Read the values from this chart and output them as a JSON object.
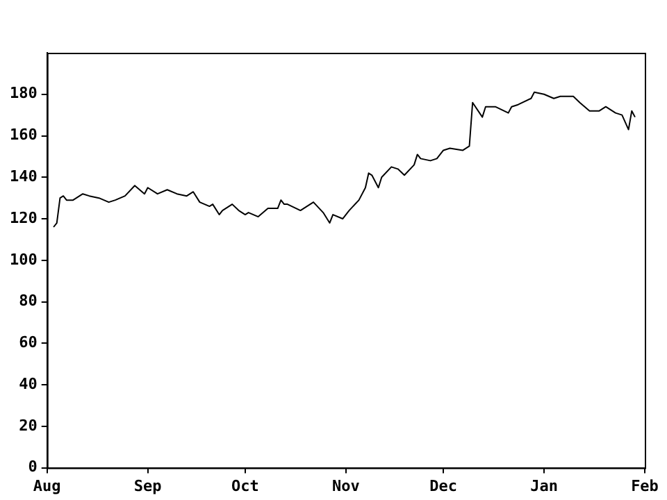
{
  "chart_data": {
    "type": "line",
    "categories": [
      "Aug",
      null,
      null,
      null,
      null,
      null,
      null,
      null,
      null,
      null,
      null,
      null,
      null,
      null,
      null,
      null,
      null,
      null,
      null,
      null,
      null,
      null,
      null,
      null,
      null,
      null,
      null,
      null,
      null,
      null,
      null,
      "Sep",
      null,
      null,
      null,
      null,
      null,
      null,
      null,
      null,
      null,
      null,
      null,
      null,
      null,
      null,
      null,
      null,
      null,
      null,
      null,
      null,
      null,
      null,
      null,
      null,
      null,
      null,
      null,
      null,
      null,
      "Oct",
      null,
      null,
      null,
      null,
      null,
      null,
      null,
      null,
      null,
      null,
      null,
      null,
      null,
      null,
      null,
      null,
      null,
      null,
      null,
      null,
      null,
      null,
      null,
      null,
      null,
      null,
      null,
      null,
      null,
      null,
      "Nov",
      null,
      null,
      null,
      null,
      null,
      null,
      null,
      null,
      null,
      null,
      null,
      null,
      null,
      null,
      null,
      null,
      null,
      null,
      null,
      null,
      null,
      null,
      null,
      null,
      null,
      null,
      null,
      null,
      null,
      "Dec",
      null,
      null,
      null,
      null,
      null,
      null,
      null,
      null,
      null,
      null,
      null,
      null,
      null,
      null,
      null,
      null,
      null,
      null,
      null,
      null,
      null,
      null,
      null,
      null,
      null,
      null,
      null,
      null,
      null,
      null,
      "Jan",
      null,
      null,
      null,
      null,
      null,
      null,
      null,
      null,
      null,
      null,
      null,
      null,
      null,
      null,
      null,
      null,
      null,
      null,
      null,
      null,
      null,
      null,
      null,
      null,
      null,
      null,
      null,
      null,
      null,
      null,
      "Feb"
    ],
    "series": [
      {
        "color": "#000000",
        "values": [
          null,
          null,
          116,
          118,
          130,
          131,
          129,
          null,
          129,
          null,
          null,
          132,
          null,
          131,
          null,
          null,
          130,
          null,
          null,
          128,
          null,
          129,
          null,
          null,
          131,
          null,
          null,
          136,
          null,
          null,
          132,
          135,
          null,
          null,
          132,
          null,
          null,
          134,
          null,
          null,
          132,
          null,
          null,
          131,
          null,
          133,
          null,
          128,
          null,
          null,
          126,
          127,
          null,
          122,
          124,
          null,
          null,
          127,
          null,
          124,
          null,
          122,
          123,
          null,
          null,
          121,
          null,
          null,
          125,
          null,
          null,
          125,
          129,
          127,
          127,
          null,
          null,
          null,
          124,
          null,
          null,
          null,
          128,
          null,
          null,
          123,
          null,
          118,
          122,
          null,
          null,
          120,
          null,
          124,
          null,
          null,
          129,
          null,
          135,
          142,
          141,
          null,
          135,
          140,
          null,
          null,
          145,
          null,
          144,
          null,
          141,
          null,
          null,
          146,
          151,
          149,
          null,
          null,
          148,
          null,
          149,
          null,
          153,
          null,
          154,
          null,
          null,
          null,
          153,
          null,
          155,
          176,
          null,
          null,
          169,
          174,
          null,
          null,
          174,
          null,
          null,
          null,
          171,
          174,
          null,
          175,
          null,
          null,
          null,
          178,
          181,
          null,
          null,
          180,
          null,
          null,
          178,
          null,
          179,
          null,
          null,
          null,
          179,
          null,
          176,
          null,
          null,
          172,
          null,
          null,
          172,
          null,
          174,
          null,
          null,
          171,
          null,
          170,
          null,
          163,
          172,
          169,
          null,
          null,
          null
        ]
      }
    ],
    "ylim": [
      0,
      200
    ],
    "yticks": [
      0,
      20,
      40,
      60,
      80,
      100,
      120,
      140,
      160,
      180
    ],
    "grid": false,
    "legend": false,
    "marker": "none",
    "line_style": "solid"
  }
}
